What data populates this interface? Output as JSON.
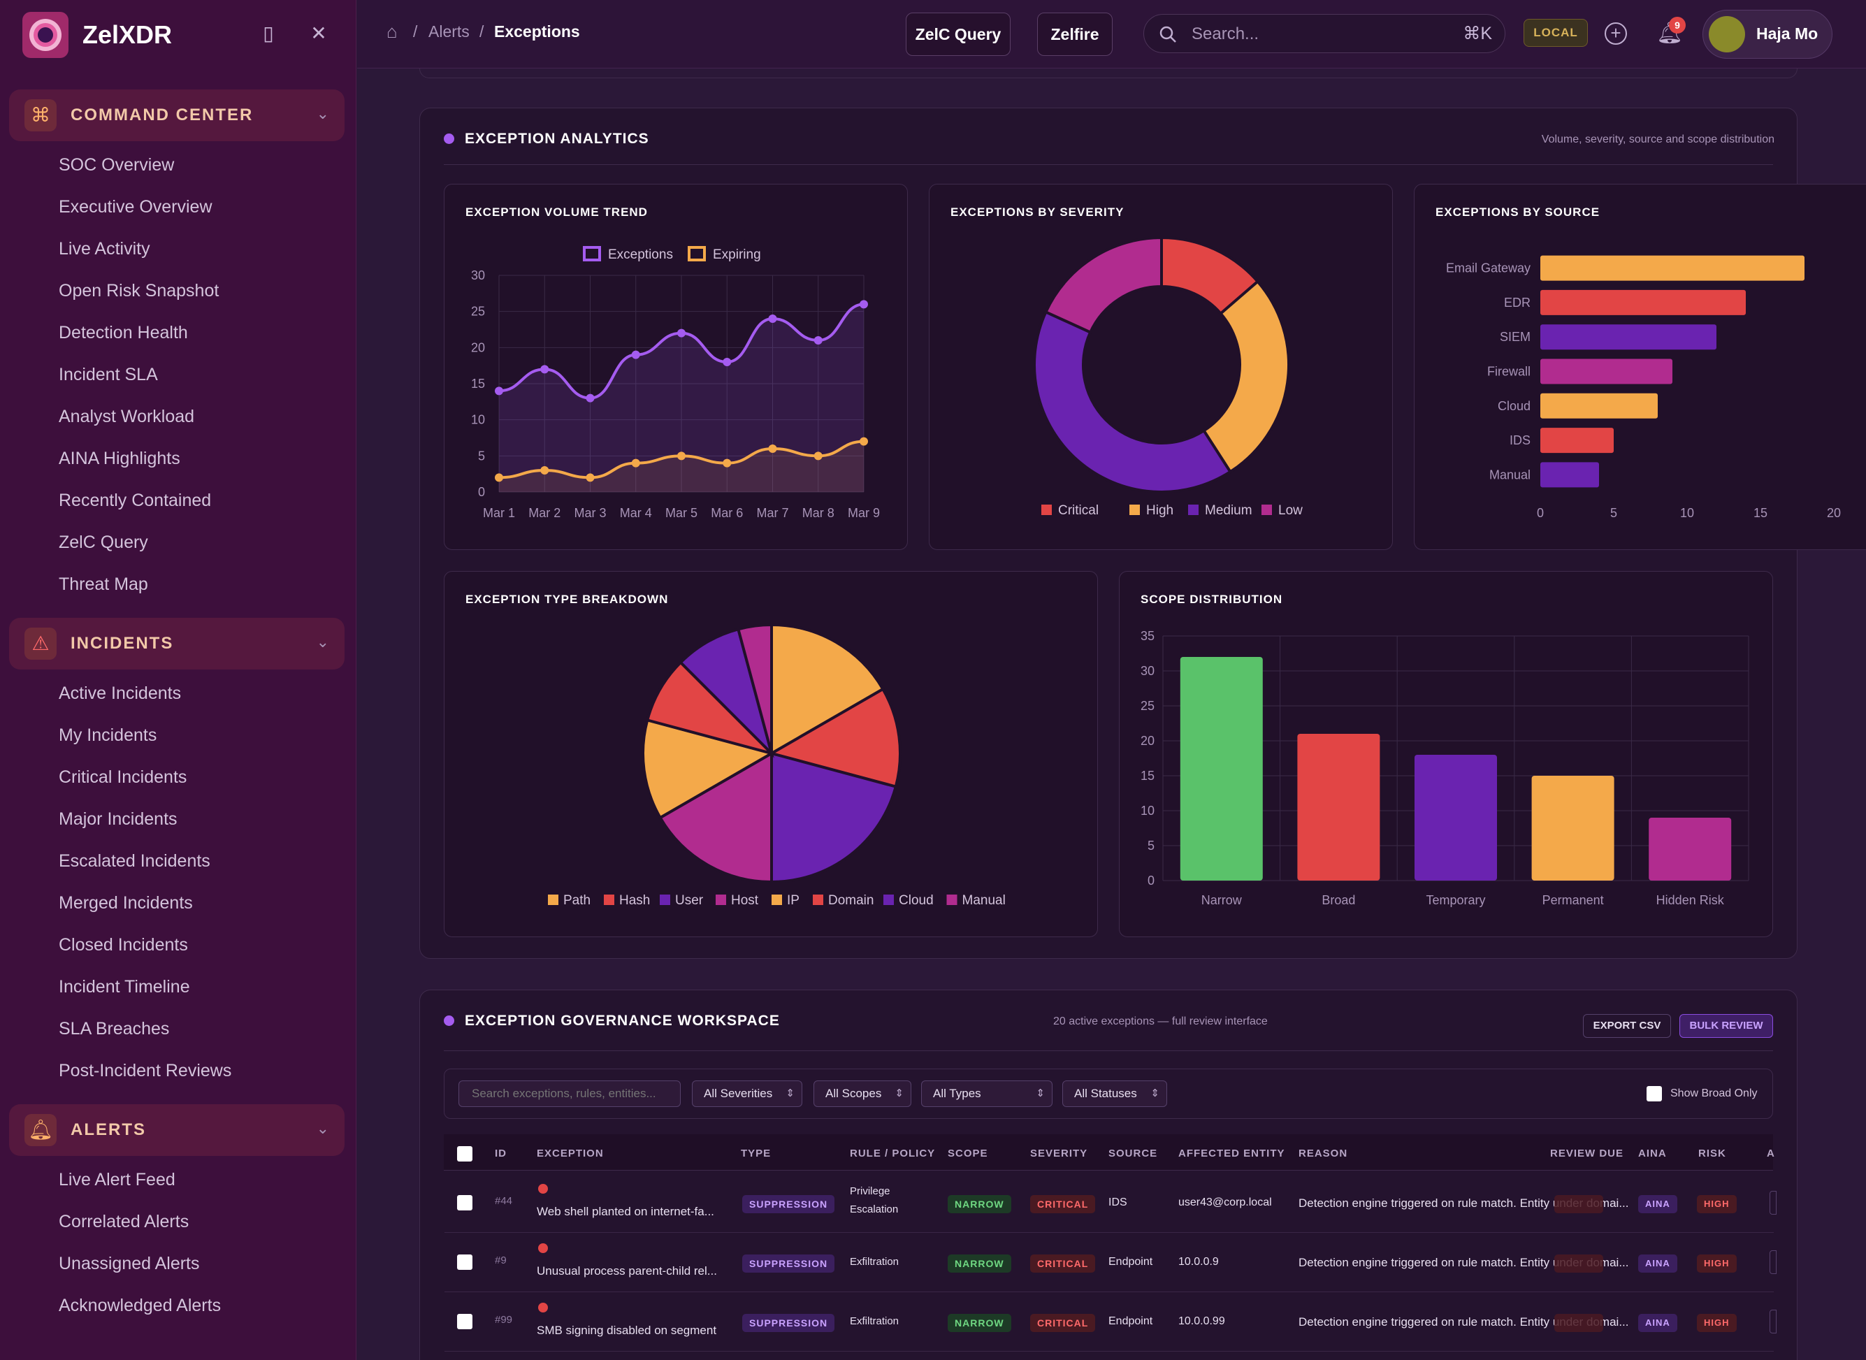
{
  "app": {
    "name": "ZelXDR"
  },
  "sidebar": {
    "sections": [
      {
        "label": "COMMAND CENTER",
        "icon": "command-icon",
        "items": [
          "SOC Overview",
          "Executive Overview",
          "Live Activity",
          "Open Risk Snapshot",
          "Detection Health",
          "Incident SLA",
          "Analyst Workload",
          "AINA Highlights",
          "Recently Contained",
          "ZelC Query",
          "Threat Map"
        ]
      },
      {
        "label": "INCIDENTS",
        "icon": "warning-icon",
        "items": [
          "Active Incidents",
          "My Incidents",
          "Critical Incidents",
          "Major Incidents",
          "Escalated Incidents",
          "Merged Incidents",
          "Closed Incidents",
          "Incident Timeline",
          "SLA Breaches",
          "Post-Incident Reviews"
        ]
      },
      {
        "label": "ALERTS",
        "icon": "bell-icon",
        "items": [
          "Live Alert Feed",
          "Correlated Alerts",
          "Unassigned Alerts",
          "Acknowledged Alerts"
        ]
      }
    ]
  },
  "topbar": {
    "breadcrumb": [
      "Alerts",
      "Exceptions"
    ],
    "zelc_query": "ZelC Query",
    "zelfire": "Zelfire",
    "search_placeholder": "Search...",
    "search_shortcut": "⌘K",
    "env_badge": "LOCAL",
    "notification_count": "9",
    "user_name": "Haja Mo"
  },
  "analytics": {
    "title": "EXCEPTION ANALYTICS",
    "subtitle": "Volume, severity, source and scope distribution",
    "volume": {
      "title": "EXCEPTION VOLUME TREND"
    },
    "severity": {
      "title": "EXCEPTIONS BY SEVERITY"
    },
    "source": {
      "title": "EXCEPTIONS BY SOURCE"
    },
    "type": {
      "title": "EXCEPTION TYPE BREAKDOWN"
    },
    "scope": {
      "title": "SCOPE DISTRIBUTION"
    }
  },
  "chart_data": [
    {
      "type": "line",
      "title": "EXCEPTION VOLUME TREND",
      "x": [
        "Mar 1",
        "Mar 2",
        "Mar 3",
        "Mar 4",
        "Mar 5",
        "Mar 6",
        "Mar 7",
        "Mar 8",
        "Mar 9"
      ],
      "series": [
        {
          "name": "Exceptions",
          "color": "#a55cf0",
          "values": [
            14,
            17,
            13,
            19,
            22,
            18,
            24,
            21,
            26
          ]
        },
        {
          "name": "Expiring",
          "color": "#f4a94a",
          "values": [
            2,
            3,
            2,
            4,
            5,
            4,
            6,
            5,
            7
          ]
        }
      ],
      "ylim": [
        0,
        30
      ],
      "yticks": [
        0,
        5,
        10,
        15,
        20,
        25,
        30
      ],
      "grid": true,
      "legend": "top"
    },
    {
      "type": "pie",
      "title": "EXCEPTIONS BY SEVERITY",
      "donut": true,
      "labels": [
        "Critical",
        "High",
        "Medium",
        "Low"
      ],
      "values": [
        3,
        6,
        9,
        4
      ],
      "colors": [
        "#e24545",
        "#f4a94a",
        "#6a23b0",
        "#b12c8f"
      ],
      "legend": "bottom"
    },
    {
      "type": "bar",
      "orientation": "horizontal",
      "title": "EXCEPTIONS BY SOURCE",
      "categories": [
        "Email Gateway",
        "EDR",
        "SIEM",
        "Firewall",
        "Cloud",
        "IDS",
        "Manual"
      ],
      "values": [
        18,
        14,
        12,
        9,
        8,
        5,
        4
      ],
      "colors": [
        "#f4a94a",
        "#e24545",
        "#6a23b0",
        "#b12c8f",
        "#f4a94a",
        "#e24545",
        "#6a23b0"
      ],
      "xlim": [
        0,
        20
      ],
      "xticks": [
        0,
        5,
        10,
        15,
        20
      ]
    },
    {
      "type": "pie",
      "title": "EXCEPTION TYPE BREAKDOWN",
      "labels": [
        "Path",
        "Hash",
        "User",
        "Host",
        "IP",
        "Domain",
        "Cloud",
        "Manual"
      ],
      "values": [
        4,
        3,
        5,
        4,
        3,
        2,
        2,
        1
      ],
      "colors": [
        "#f4a94a",
        "#e24545",
        "#6a23b0",
        "#b12c8f",
        "#f4a94a",
        "#e24545",
        "#6a23b0",
        "#b12c8f"
      ],
      "legend": "bottom"
    },
    {
      "type": "bar",
      "title": "SCOPE DISTRIBUTION",
      "categories": [
        "Narrow",
        "Broad",
        "Temporary",
        "Permanent",
        "Hidden Risk"
      ],
      "values": [
        32,
        21,
        18,
        15,
        9
      ],
      "colors": [
        "#5ac26a",
        "#e24545",
        "#6a23b0",
        "#f4a94a",
        "#b12c8f"
      ],
      "ylim": [
        0,
        35
      ],
      "yticks": [
        0,
        5,
        10,
        15,
        20,
        25,
        30,
        35
      ],
      "grid": true
    }
  ],
  "workspace": {
    "title": "EXCEPTION GOVERNANCE WORKSPACE",
    "summary": "20 active exceptions — full review interface",
    "export_label": "EXPORT CSV",
    "bulk_label": "BULK REVIEW",
    "filter_placeholder": "Search exceptions, rules, entities...",
    "filters": [
      "All Severities",
      "All Scopes",
      "All Types",
      "All Statuses"
    ],
    "broad_only_label": "Show Broad Only",
    "columns": [
      "ID",
      "EXCEPTION",
      "TYPE",
      "RULE / POLICY",
      "SCOPE",
      "SEVERITY",
      "SOURCE",
      "AFFECTED ENTITY",
      "REASON",
      "REVIEW DUE",
      "AINA",
      "RISK",
      "A"
    ],
    "rows": [
      {
        "id": "#44",
        "exception": "Web shell planted on internet-fa...",
        "type": "SUPPRESSION",
        "rule_line1": "Privilege",
        "rule_line2": "Escalation",
        "scope": "NARROW",
        "severity": "CRITICAL",
        "source": "IDS",
        "entity": "user43@corp.local",
        "reason": "Detection engine triggered on rule match. Entity under domai...",
        "review_due": "",
        "aina": "AINA",
        "risk": "HIGH"
      },
      {
        "id": "#9",
        "exception": "Unusual process parent-child rel...",
        "type": "SUPPRESSION",
        "rule_line1": "Exfiltration",
        "rule_line2": "",
        "scope": "NARROW",
        "severity": "CRITICAL",
        "source": "Endpoint",
        "entity": "10.0.0.9",
        "reason": "Detection engine triggered on rule match. Entity under domai...",
        "review_due": "",
        "aina": "AINA",
        "risk": "HIGH"
      },
      {
        "id": "#99",
        "exception": "SMB signing disabled on segment",
        "type": "SUPPRESSION",
        "rule_line1": "Exfiltration",
        "rule_line2": "",
        "scope": "NARROW",
        "severity": "CRITICAL",
        "source": "Endpoint",
        "entity": "10.0.0.99",
        "reason": "Detection engine triggered on rule match. Entity under domai...",
        "review_due": "",
        "aina": "AINA",
        "risk": "HIGH"
      }
    ]
  }
}
